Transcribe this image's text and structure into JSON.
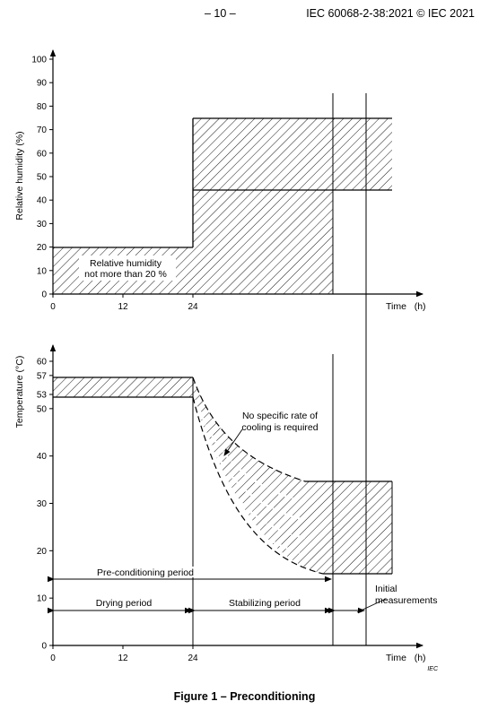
{
  "header": {
    "page": "– 10 –",
    "reference": "IEC 60068-2-38:2021 © IEC 2021"
  },
  "caption": "Figure 1 – Preconditioning",
  "iec_mark": "IEC",
  "chart_data": [
    {
      "type": "area",
      "title": "",
      "ylabel": "Relative humidity   (%)",
      "xlabel": "Time   (h)",
      "x_ticks": [
        "0",
        "12",
        "24"
      ],
      "y_ticks": [
        "0",
        "10",
        "20",
        "30",
        "40",
        "50",
        "60",
        "70",
        "80",
        "90",
        "100"
      ],
      "ylim": [
        0,
        100
      ],
      "annotation": [
        "Relative humidity",
        "not more than 20 %"
      ],
      "bands": [
        {
          "x_from_h": 0,
          "x_to_h": 24,
          "lower": 0,
          "upper": 20
        },
        {
          "x_from_h": 24,
          "x_to_h": 48,
          "lower": 0,
          "upper": 45
        },
        {
          "x_from_h": 24,
          "x_to_h": 58,
          "lower": 45,
          "upper": 75
        }
      ]
    },
    {
      "type": "area",
      "title": "",
      "ylabel": "Temperature   (°C)",
      "xlabel": "Time   (h)",
      "x_ticks": [
        "0",
        "12",
        "24"
      ],
      "y_ticks": [
        "0",
        "10",
        "20",
        "30",
        "40",
        "50",
        "53",
        "57",
        "60"
      ],
      "ylim": [
        0,
        60
      ],
      "annotation": [
        "No specific rate of",
        "cooling is required"
      ],
      "bands": [
        {
          "x_from_h": 0,
          "x_to_h": 24,
          "lower": 53,
          "upper": 57
        },
        {
          "x_from_h": 48,
          "x_to_h": 58,
          "lower": 15,
          "upper": 35
        }
      ],
      "periods": [
        {
          "label": "Pre-conditioning period"
        },
        {
          "label": "Drying period"
        },
        {
          "label": "Stabilizing period"
        },
        {
          "label": [
            "Initial",
            "measurements"
          ]
        }
      ]
    }
  ]
}
